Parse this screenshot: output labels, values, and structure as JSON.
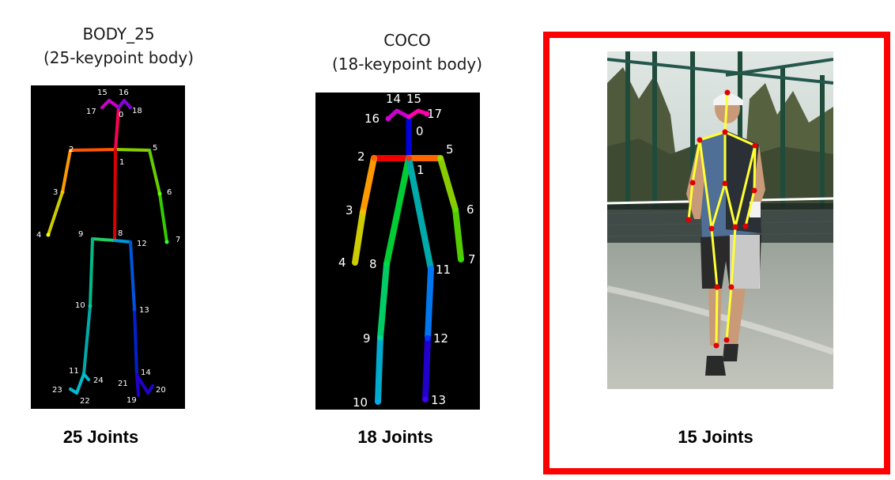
{
  "panels": [
    {
      "title_line1": "BODY_25",
      "title_line2": "(25-keypoint body)",
      "caption": "25 Joints",
      "labels": [
        "0",
        "1",
        "2",
        "3",
        "4",
        "5",
        "6",
        "7",
        "8",
        "9",
        "10",
        "11",
        "12",
        "13",
        "14",
        "15",
        "16",
        "17",
        "18",
        "19",
        "20",
        "21",
        "22",
        "23",
        "24"
      ]
    },
    {
      "title_line1": "COCO",
      "title_line2": "(18-keypoint body)",
      "caption": "18 Joints",
      "labels": [
        "0",
        "1",
        "2",
        "3",
        "4",
        "5",
        "6",
        "7",
        "8",
        "9",
        "10",
        "11",
        "12",
        "13",
        "14",
        "15",
        "16",
        "17"
      ]
    },
    {
      "caption": "15 Joints"
    }
  ],
  "colors": {
    "highlight_border": "#ff0000",
    "joint_dot": "#e00000",
    "bone_line": "#ffff33",
    "skeleton_background": "#000000"
  }
}
